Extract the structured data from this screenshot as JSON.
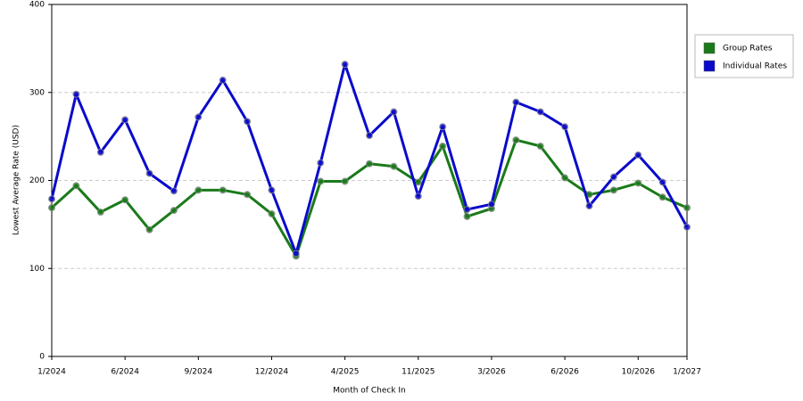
{
  "chart_data": {
    "type": "line",
    "x_label": "Month of Check In",
    "y_label": "Lowest Average Rate (USD)",
    "categories": [
      "1/2024",
      null,
      null,
      "6/2024",
      null,
      null,
      "9/2024",
      null,
      null,
      "12/2024",
      null,
      null,
      "4/2025",
      null,
      null,
      "11/2025",
      null,
      null,
      "3/2026",
      null,
      null,
      "6/2026",
      null,
      null,
      "10/2026",
      null,
      "1/2027"
    ],
    "series": [
      {
        "name": "Group Rates",
        "color": "#1a7a1a",
        "values": [
          169,
          194,
          164,
          178,
          144,
          166,
          189,
          189,
          184,
          162,
          114,
          199,
          199,
          219,
          216,
          198,
          239,
          159,
          168,
          246,
          239,
          203,
          184,
          189,
          197,
          181,
          169
        ]
      },
      {
        "name": "Individual Rates",
        "color": "#0a0acc",
        "values": [
          179,
          298,
          232,
          269,
          208,
          188,
          272,
          314,
          267,
          189,
          117,
          220,
          332,
          251,
          278,
          182,
          261,
          167,
          173,
          289,
          278,
          261,
          171,
          204,
          229,
          198,
          147
        ]
      }
    ],
    "ylim": [
      0,
      400
    ],
    "yticks": [
      0,
      100,
      200,
      300,
      400
    ],
    "grid": true,
    "legend": "right"
  }
}
